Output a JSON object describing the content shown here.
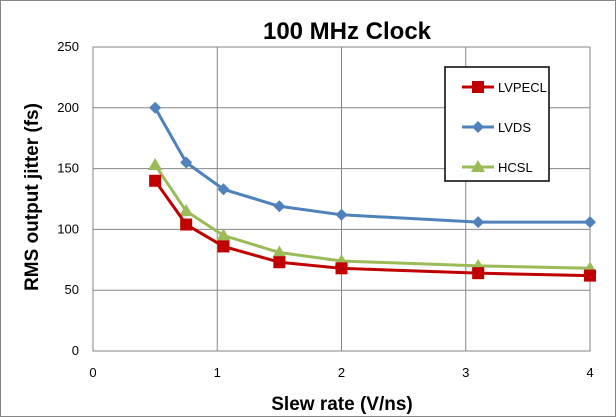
{
  "chart_data": {
    "type": "line",
    "title": "100 MHz Clock",
    "xlabel": "Slew rate (V/ns)",
    "ylabel": "RMS output  jitter (fs)",
    "xlim": [
      0,
      4
    ],
    "ylim": [
      0,
      250
    ],
    "x_ticks": [
      0,
      1,
      2,
      3,
      4
    ],
    "y_ticks": [
      0,
      50,
      100,
      150,
      200,
      250
    ],
    "grid": "vertical and horizontal major gridlines",
    "legend_position": "top-right, inside plot area, boxed",
    "series": [
      {
        "name": "LVPECL",
        "color": "#C00000",
        "marker": "square",
        "x": [
          0.5,
          0.75,
          1.05,
          1.5,
          2.0,
          3.1,
          4.0
        ],
        "y": [
          140,
          104,
          86,
          73,
          68,
          64,
          62
        ]
      },
      {
        "name": "LVDS",
        "color": "#4F81BD",
        "marker": "diamond",
        "x": [
          0.5,
          0.75,
          1.05,
          1.5,
          2.0,
          3.1,
          4.0
        ],
        "y": [
          200,
          155,
          133,
          119,
          112,
          106,
          106
        ]
      },
      {
        "name": "HCSL",
        "color": "#9BBB59",
        "marker": "triangle",
        "x": [
          0.5,
          0.75,
          1.05,
          1.5,
          2.0,
          3.1,
          4.0
        ],
        "y": [
          153,
          115,
          95,
          81,
          74,
          70,
          68
        ]
      }
    ]
  }
}
